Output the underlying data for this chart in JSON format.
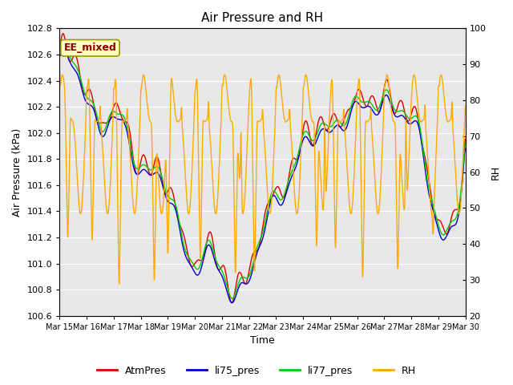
{
  "title": "Air Pressure and RH",
  "xlabel": "Time",
  "ylabel_left": "Air Pressure (kPa)",
  "ylabel_right": "RH",
  "ylim_left": [
    100.6,
    102.8
  ],
  "ylim_right": [
    20,
    100
  ],
  "yticks_left": [
    100.6,
    100.8,
    101.0,
    101.2,
    101.4,
    101.6,
    101.8,
    102.0,
    102.2,
    102.4,
    102.6,
    102.8
  ],
  "yticks_right": [
    20,
    30,
    40,
    50,
    60,
    70,
    80,
    90,
    100
  ],
  "xtick_labels": [
    "Mar 15",
    "Mar 16",
    "Mar 17",
    "Mar 18",
    "Mar 19",
    "Mar 20",
    "Mar 21",
    "Mar 22",
    "Mar 23",
    "Mar 24",
    "Mar 25",
    "Mar 26",
    "Mar 27",
    "Mar 28",
    "Mar 29",
    "Mar 30"
  ],
  "color_atm": "#dd0000",
  "color_li75": "#0000cc",
  "color_li77": "#00cc00",
  "color_rh": "#ffaa00",
  "linewidth_pres": 1.0,
  "linewidth_rh": 1.0,
  "annotation_text": "EE_mixed",
  "plot_bg": "#e8e8e8",
  "grid_color": "#ffffff",
  "title_fontsize": 11,
  "label_fontsize": 9,
  "tick_fontsize": 8,
  "legend_fontsize": 9
}
